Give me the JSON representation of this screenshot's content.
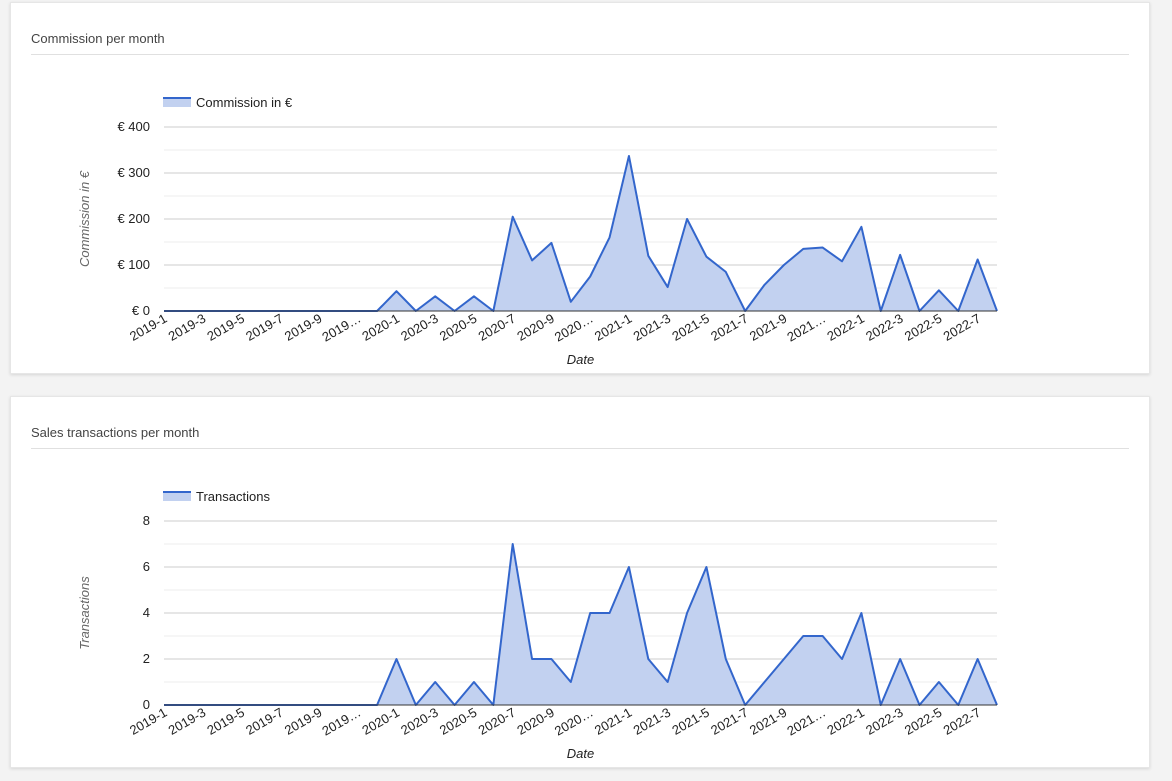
{
  "charts": [
    {
      "card_title": "Commission per month",
      "chart_data": {
        "type": "area",
        "title": "",
        "xlabel": "Date",
        "ylabel": "Commission in €",
        "legend": {
          "position": "top-left"
        },
        "ylim": [
          0,
          400
        ],
        "yticks": [
          0,
          100,
          200,
          300,
          400
        ],
        "ytick_labels": [
          "€ 0",
          "€ 100",
          "€ 200",
          "€ 300",
          "€ 400"
        ],
        "grid": true,
        "x": [
          "2019-1",
          "2019-2",
          "2019-3",
          "2019-4",
          "2019-5",
          "2019-6",
          "2019-7",
          "2019-8",
          "2019-9",
          "2019-10",
          "2019-11",
          "2019-12",
          "2020-1",
          "2020-2",
          "2020-3",
          "2020-4",
          "2020-5",
          "2020-6",
          "2020-7",
          "2020-8",
          "2020-9",
          "2020-10",
          "2020-11",
          "2020-12",
          "2021-1",
          "2021-2",
          "2021-3",
          "2021-4",
          "2021-5",
          "2021-6",
          "2021-7",
          "2021-8",
          "2021-9",
          "2021-10",
          "2021-11",
          "2021-12",
          "2022-1",
          "2022-2",
          "2022-3",
          "2022-4",
          "2022-5",
          "2022-6",
          "2022-7",
          "2022-8"
        ],
        "xtick_labels": [
          "2019-1",
          "2019-3",
          "2019-5",
          "2019-7",
          "2019-9",
          "2019…",
          "2020-1",
          "2020-3",
          "2020-5",
          "2020-7",
          "2020-9",
          "2020…",
          "2021-1",
          "2021-3",
          "2021-5",
          "2021-7",
          "2021-9",
          "2021…",
          "2022-1",
          "2022-3",
          "2022-5",
          "2022-7"
        ],
        "series": [
          {
            "name": "Commission in €",
            "color": "#3366cc",
            "fill": "#c2d1f0",
            "values": [
              0,
              0,
              0,
              0,
              0,
              0,
              0,
              0,
              0,
              0,
              0,
              0,
              43,
              0,
              32,
              0,
              32,
              0,
              205,
              110,
              148,
              20,
              75,
              160,
              337,
              120,
              52,
              200,
              118,
              85,
              0,
              57,
              100,
              135,
              138,
              108,
              183,
              0,
              122,
              0,
              45,
              0,
              112,
              0
            ]
          }
        ]
      }
    },
    {
      "card_title": "Sales transactions per month",
      "chart_data": {
        "type": "area",
        "title": "",
        "xlabel": "Date",
        "ylabel": "Transactions",
        "legend": {
          "position": "top-left"
        },
        "ylim": [
          0,
          8
        ],
        "yticks": [
          0,
          2,
          4,
          6,
          8
        ],
        "ytick_labels": [
          "0",
          "2",
          "4",
          "6",
          "8"
        ],
        "grid": true,
        "x": [
          "2019-1",
          "2019-2",
          "2019-3",
          "2019-4",
          "2019-5",
          "2019-6",
          "2019-7",
          "2019-8",
          "2019-9",
          "2019-10",
          "2019-11",
          "2019-12",
          "2020-1",
          "2020-2",
          "2020-3",
          "2020-4",
          "2020-5",
          "2020-6",
          "2020-7",
          "2020-8",
          "2020-9",
          "2020-10",
          "2020-11",
          "2020-12",
          "2021-1",
          "2021-2",
          "2021-3",
          "2021-4",
          "2021-5",
          "2021-6",
          "2021-7",
          "2021-8",
          "2021-9",
          "2021-10",
          "2021-11",
          "2021-12",
          "2022-1",
          "2022-2",
          "2022-3",
          "2022-4",
          "2022-5",
          "2022-6",
          "2022-7",
          "2022-8"
        ],
        "xtick_labels": [
          "2019-1",
          "2019-3",
          "2019-5",
          "2019-7",
          "2019-9",
          "2019…",
          "2020-1",
          "2020-3",
          "2020-5",
          "2020-7",
          "2020-9",
          "2020…",
          "2021-1",
          "2021-3",
          "2021-5",
          "2021-7",
          "2021-9",
          "2021…",
          "2022-1",
          "2022-3",
          "2022-5",
          "2022-7"
        ],
        "series": [
          {
            "name": "Transactions",
            "color": "#3366cc",
            "fill": "#c2d1f0",
            "values": [
              0,
              0,
              0,
              0,
              0,
              0,
              0,
              0,
              0,
              0,
              0,
              0,
              2,
              0,
              1,
              0,
              1,
              0,
              7,
              2,
              2,
              1,
              4,
              4,
              6,
              2,
              1,
              4,
              6,
              2,
              0,
              1,
              2,
              3,
              3,
              2,
              4,
              0,
              2,
              0,
              1,
              0,
              2,
              0
            ]
          }
        ]
      }
    }
  ]
}
